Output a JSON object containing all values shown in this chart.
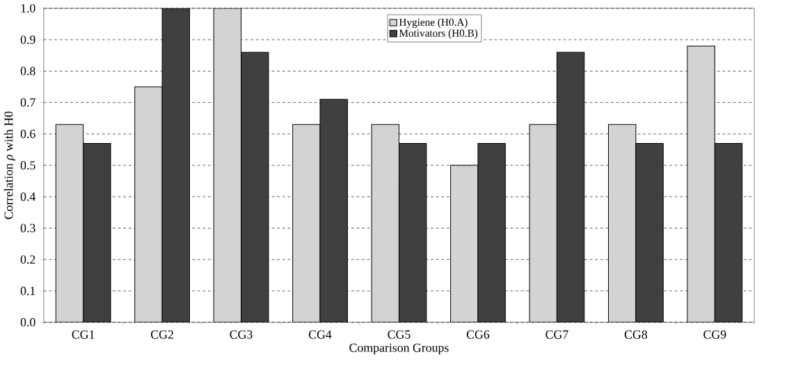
{
  "chart_data": {
    "type": "bar",
    "xlabel": "Comparison Groups",
    "ylabel": "Correlation *ρ* with H0",
    "categories": [
      "CG1",
      "CG2",
      "CG3",
      "CG4",
      "CG5",
      "CG6",
      "CG7",
      "CG8",
      "CG9"
    ],
    "series": [
      {
        "name": "Hygiene (H0.A)",
        "color": "#d3d3d3",
        "values": [
          0.63,
          0.75,
          1.0,
          0.63,
          0.63,
          0.5,
          0.63,
          0.63,
          0.88
        ]
      },
      {
        "name": "Motivators (H0.B)",
        "color": "#404040",
        "values": [
          0.57,
          1.0,
          0.86,
          0.71,
          0.57,
          0.57,
          0.86,
          0.57,
          0.57
        ]
      }
    ],
    "ylim": [
      0,
      1
    ],
    "yticks": [
      {
        "value": 0,
        "label": "0.0"
      },
      0.1,
      0.2,
      0.3,
      0.4,
      0.5,
      0.6,
      0.7,
      0.8,
      0.9,
      {
        "value": 1,
        "label": "1.0"
      }
    ],
    "grid": "y",
    "legend": "top"
  }
}
